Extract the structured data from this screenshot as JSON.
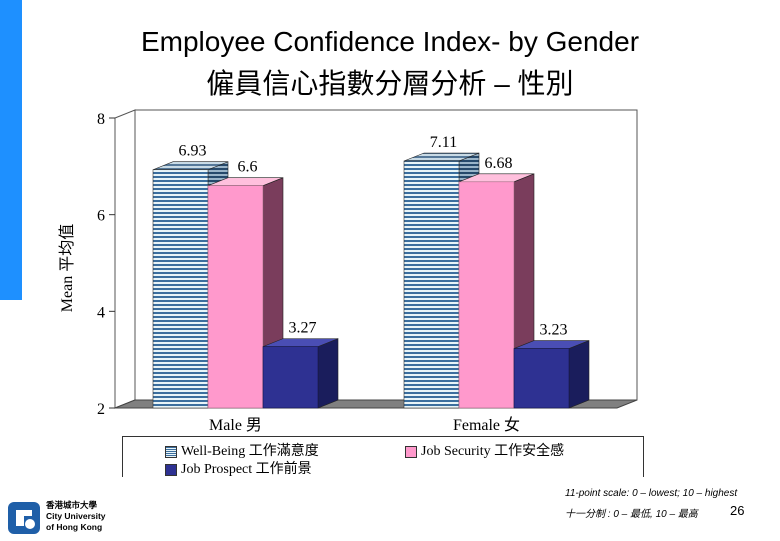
{
  "title_en": "Employee Confidence Index- by Gender",
  "title_zh": "僱員信心指數分層分析 – 性別",
  "chart_data": {
    "type": "bar",
    "title": "Employee Confidence Index- by Gender",
    "ylabel": "Mean 平均值",
    "ylim": [
      2,
      8
    ],
    "yticks": [
      "2",
      "4",
      "6",
      "8"
    ],
    "categories": [
      "Male 男",
      "Female 女"
    ],
    "series": [
      {
        "name": "Well-Being 工作滿意度",
        "values": [
          6.93,
          7.11
        ],
        "value_labels": [
          "6.93",
          "7.11"
        ],
        "color": "#3b6e9e"
      },
      {
        "name": "Job Security 工作安全感",
        "values": [
          6.6,
          6.68
        ],
        "value_labels": [
          "6.6",
          "6.68"
        ],
        "color": "#ff99cc"
      },
      {
        "name": "Job Prospect 工作前景",
        "values": [
          3.27,
          3.23
        ],
        "value_labels": [
          "3.27",
          "3.23"
        ],
        "color": "#2e3192"
      }
    ]
  },
  "footnote_en": "11-point scale: 0 – lowest; 10 – highest",
  "footnote_zh": "十一分制 : 0 – 最低, 10 – 最高",
  "page_number": "26",
  "logo": {
    "line1": "香港城市大學",
    "line2": "City University",
    "line3": "of Hong Kong"
  }
}
